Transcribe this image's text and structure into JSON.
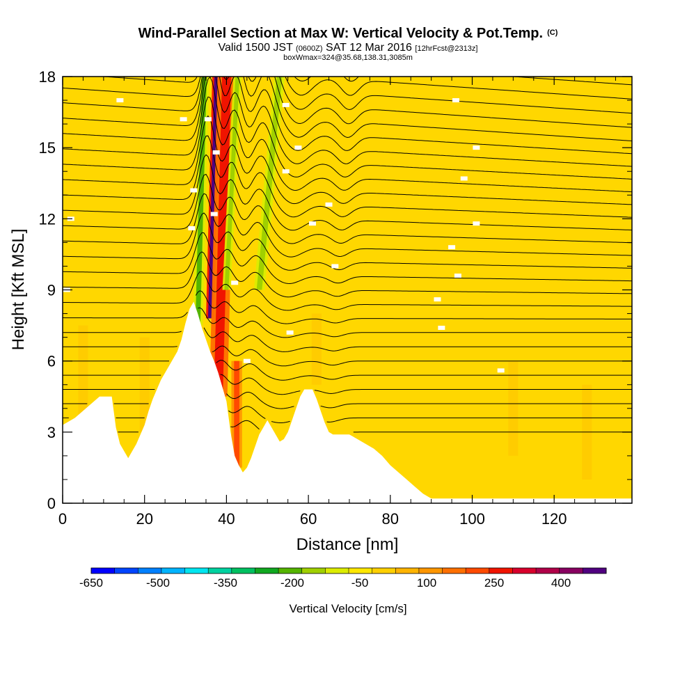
{
  "header": {
    "title": "Wind-Parallel Section at Max W: Vertical Velocity & Pot.Temp.",
    "copyright_mark": "(C)",
    "subtitle_a": "Valid 1500 JST",
    "subtitle_b": "(0600Z)",
    "subtitle_c": "SAT 12 Mar 2016",
    "subtitle_d": "[12hrFcst@2313z]",
    "box_line": "boxWmax=324@35.68,138.31,3085m"
  },
  "colorbar": {
    "label": "Vertical Velocity [cm/s]",
    "colors": [
      "#0000ff",
      "#0044ff",
      "#0080ff",
      "#00b4ff",
      "#00e6f0",
      "#00d2a0",
      "#00c060",
      "#10a820",
      "#54b400",
      "#a0d000",
      "#dcec00",
      "#ffe800",
      "#ffd000",
      "#ffb400",
      "#ff9600",
      "#ff7000",
      "#ff4a00",
      "#f01400",
      "#d8002c",
      "#b00048",
      "#880060",
      "#500080"
    ],
    "tick_labels": [
      "-650",
      "-500",
      "-350",
      "-200",
      "-50",
      "100",
      "250",
      "400"
    ]
  },
  "chart_data": {
    "type": "heatmap",
    "title": "Wind-Parallel Section at Max W: Vertical Velocity & Pot.Temp.",
    "xlabel": "Distance [nm]",
    "ylabel": "Height [Kft MSL]",
    "xlim": [
      0,
      139
    ],
    "ylim": [
      0,
      18
    ],
    "x_ticks": [
      "0",
      "20",
      "40",
      "60",
      "80",
      "100",
      "120"
    ],
    "x_tick_values": [
      0,
      20,
      40,
      60,
      80,
      100,
      120
    ],
    "y_ticks": [
      "0",
      "3",
      "6",
      "9",
      "12",
      "15",
      "18"
    ],
    "y_tick_values": [
      0,
      3,
      6,
      9,
      12,
      15,
      18
    ],
    "background_color": "#ffd700",
    "w_features": [
      {
        "name": "updraft core",
        "x": 36.0,
        "y_bottom": 7.8,
        "y_top": 18,
        "tilt_nm_per_kft": 0.15,
        "peak_cms": 450
      },
      {
        "name": "updraft flank",
        "x": 38.0,
        "y_bottom": 4.5,
        "y_top": 18,
        "tilt_nm_per_kft": 0.15,
        "peak_cms": 200
      },
      {
        "name": "downdraft west",
        "x": 33.0,
        "y_bottom": 7.5,
        "y_top": 18,
        "tilt_nm_per_kft": 0.15,
        "peak_cms": -250
      },
      {
        "name": "downdraft east",
        "x": 40.0,
        "y_bottom": 9.0,
        "y_top": 18,
        "tilt_nm_per_kft": 0.3,
        "peak_cms": -200
      },
      {
        "name": "downdraft band 2",
        "x": 48.0,
        "y_bottom": 9.0,
        "y_top": 18,
        "tilt_nm_per_kft": 0.55,
        "peak_cms": -200
      },
      {
        "name": "lee updraft",
        "x": 42.5,
        "y_bottom": 1.5,
        "y_top": 6.0,
        "tilt_nm_per_kft": 0.0,
        "peak_cms": 180
      }
    ],
    "terrain_kft": [
      [
        0,
        3.3
      ],
      [
        3,
        3.6
      ],
      [
        5,
        3.9
      ],
      [
        7,
        4.2
      ],
      [
        9,
        4.5
      ],
      [
        12,
        4.5
      ],
      [
        13,
        3.2
      ],
      [
        14,
        2.5
      ],
      [
        15,
        2.2
      ],
      [
        16,
        1.9
      ],
      [
        17,
        2.2
      ],
      [
        18,
        2.5
      ],
      [
        19,
        2.9
      ],
      [
        20,
        3.3
      ],
      [
        21,
        3.9
      ],
      [
        22,
        4.4
      ],
      [
        23,
        4.8
      ],
      [
        24,
        5.2
      ],
      [
        25,
        5.5
      ],
      [
        26,
        5.8
      ],
      [
        27,
        6.1
      ],
      [
        28,
        6.4
      ],
      [
        29,
        6.9
      ],
      [
        30,
        7.6
      ],
      [
        31,
        8.2
      ],
      [
        32,
        8.5
      ],
      [
        33,
        8.0
      ],
      [
        34,
        7.4
      ],
      [
        35,
        6.9
      ],
      [
        36,
        6.4
      ],
      [
        37,
        6.0
      ],
      [
        38,
        5.5
      ],
      [
        39,
        4.9
      ],
      [
        40,
        4.3
      ],
      [
        41,
        3.0
      ],
      [
        42,
        2.0
      ],
      [
        43,
        1.6
      ],
      [
        44,
        1.3
      ],
      [
        45,
        1.5
      ],
      [
        46,
        1.9
      ],
      [
        47,
        2.4
      ],
      [
        48,
        2.9
      ],
      [
        49,
        3.2
      ],
      [
        50,
        3.5
      ],
      [
        51,
        3.2
      ],
      [
        52,
        2.9
      ],
      [
        53,
        2.6
      ],
      [
        54,
        2.7
      ],
      [
        55,
        3.0
      ],
      [
        56,
        3.5
      ],
      [
        57,
        4.0
      ],
      [
        58,
        4.5
      ],
      [
        59,
        4.8
      ],
      [
        61,
        4.8
      ],
      [
        62,
        4.4
      ],
      [
        63,
        3.9
      ],
      [
        64,
        3.4
      ],
      [
        65,
        3.0
      ],
      [
        66,
        2.9
      ],
      [
        70,
        2.9
      ],
      [
        72,
        2.7
      ],
      [
        74,
        2.5
      ],
      [
        76,
        2.3
      ],
      [
        78,
        2.0
      ],
      [
        80,
        1.6
      ],
      [
        82,
        1.3
      ],
      [
        84,
        1.0
      ],
      [
        86,
        0.7
      ],
      [
        88,
        0.4
      ],
      [
        90,
        0.2
      ],
      [
        139,
        0.2
      ]
    ],
    "theta_label_interval_kft": 0.6,
    "theta_labels": [
      {
        "x": 35.5,
        "y": 16.2
      },
      {
        "x": 32.0,
        "y": 13.2
      },
      {
        "x": 31.5,
        "y": 11.6
      },
      {
        "x": 37.5,
        "y": 14.8
      },
      {
        "x": 37.0,
        "y": 12.2
      },
      {
        "x": 42.0,
        "y": 9.3
      },
      {
        "x": 45.0,
        "y": 6.0
      },
      {
        "x": 54.5,
        "y": 16.8
      },
      {
        "x": 57.5,
        "y": 15.0
      },
      {
        "x": 54.5,
        "y": 14.0
      },
      {
        "x": 61.0,
        "y": 11.8
      },
      {
        "x": 65.0,
        "y": 12.6
      },
      {
        "x": 66.5,
        "y": 10.0
      },
      {
        "x": 55.5,
        "y": 7.2
      },
      {
        "x": 96.0,
        "y": 17.0
      },
      {
        "x": 101.0,
        "y": 15.0
      },
      {
        "x": 98.0,
        "y": 13.7
      },
      {
        "x": 101.0,
        "y": 11.8
      },
      {
        "x": 95.0,
        "y": 10.8
      },
      {
        "x": 96.5,
        "y": 9.6
      },
      {
        "x": 91.5,
        "y": 8.6
      },
      {
        "x": 92.5,
        "y": 7.4
      },
      {
        "x": 107.0,
        "y": 5.6
      },
      {
        "x": 14.0,
        "y": 17.0
      },
      {
        "x": 29.5,
        "y": 16.2
      },
      {
        "x": 2.0,
        "y": 12.0
      },
      {
        "x": 1.0,
        "y": 9.0
      }
    ]
  }
}
